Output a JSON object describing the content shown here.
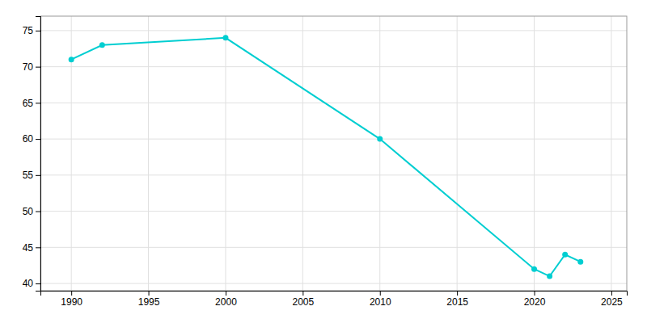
{
  "chart_data": {
    "type": "line",
    "x": [
      1990,
      1992,
      2000,
      2010,
      2020,
      2021,
      2022,
      2023
    ],
    "values": [
      71,
      73,
      74,
      60,
      42,
      41,
      44,
      43
    ],
    "color": "#00CED1",
    "marker": "circle",
    "xlim": [
      1988,
      2026
    ],
    "ylim": [
      39,
      77
    ],
    "xticks": [
      1990,
      1995,
      2000,
      2005,
      2010,
      2015,
      2020,
      2025
    ],
    "yticks": [
      40,
      45,
      50,
      55,
      60,
      65,
      70,
      75
    ],
    "grid": true
  }
}
